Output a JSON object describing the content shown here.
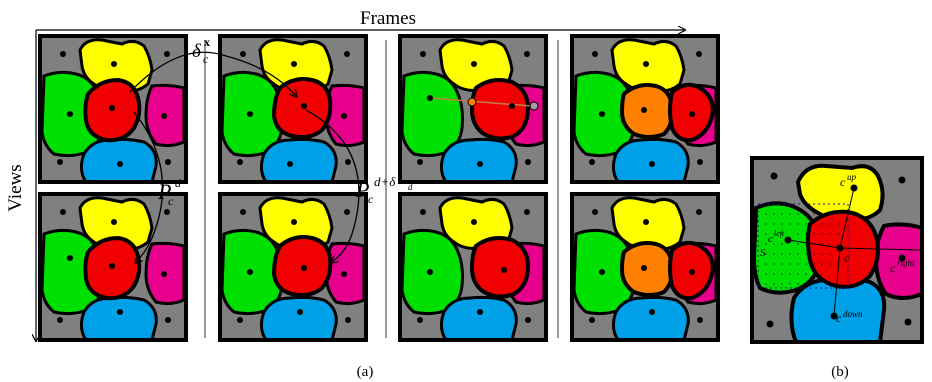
{
  "axes": {
    "frames_label": "Frames",
    "views_label": "Views"
  },
  "subfigure_labels": {
    "a": "(a)",
    "b": "(b)"
  },
  "annotations": {
    "delta_main": "δ",
    "delta_sub": "c",
    "delta_sup": "x",
    "p_d_main": "P",
    "p_d_sub": "c",
    "p_d_sup": "d",
    "p_dd_main": "P",
    "p_dd_sub": "c",
    "p_dd_sup": "d+δ",
    "p_dd_sup_sub": "d"
  },
  "neighbor_labels": {
    "center": "c",
    "up_main": "c",
    "up_sup": "up",
    "left_main": "c",
    "left_sup": "left",
    "right_main": "c",
    "right_sup": "right",
    "down_main": "c",
    "down_sup": "down",
    "s_label": "S"
  },
  "colors": {
    "gray": "#808080",
    "yellow": "#ffff00",
    "green": "#00e000",
    "red": "#f00000",
    "magenta": "#e6008c",
    "blue": "#00a0e8",
    "orange": "#ff8000",
    "border": "#000000"
  }
}
